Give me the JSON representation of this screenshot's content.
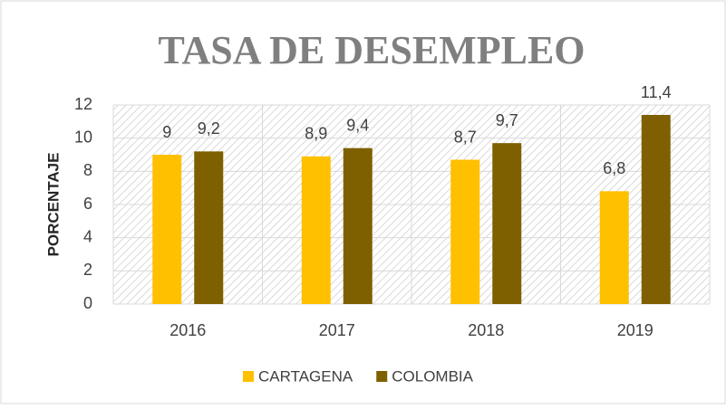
{
  "chart_data": {
    "type": "bar",
    "title": "TASA DE DESEMPLEO",
    "y_label": "PORCENTAJE",
    "categories": [
      "2016",
      "2017",
      "2018",
      "2019"
    ],
    "series": [
      {
        "name": "CARTAGENA",
        "color": "#ffc000",
        "values": [
          9,
          8.9,
          8.7,
          6.8
        ],
        "value_labels": [
          "9",
          "8,9",
          "8,7",
          "6,8"
        ]
      },
      {
        "name": "COLOMBIA",
        "color": "#7f6000",
        "values": [
          9.2,
          9.4,
          9.7,
          11.4
        ],
        "value_labels": [
          "9,2",
          "9,4",
          "9,7",
          "11,4"
        ]
      }
    ],
    "ylim": [
      0,
      12
    ],
    "yticks": [
      0,
      2,
      4,
      6,
      8,
      10,
      12
    ],
    "grid": true,
    "legend": "bottom"
  }
}
